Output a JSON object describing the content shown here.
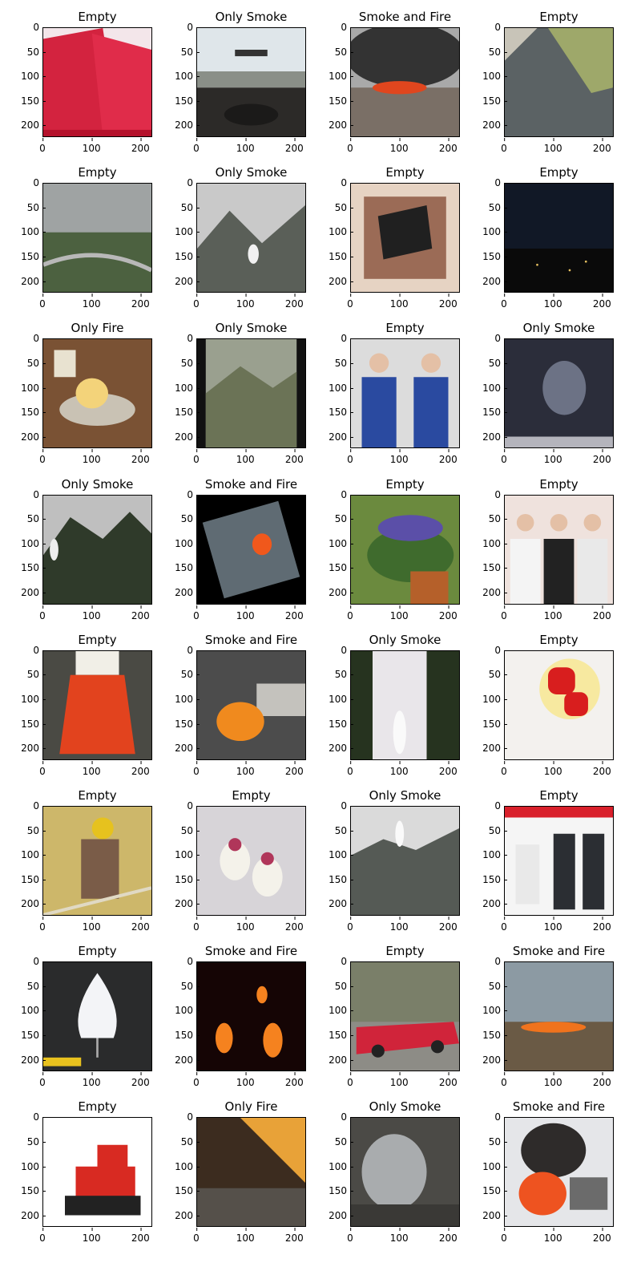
{
  "axis": {
    "y_ticks": [
      "0",
      "50",
      "100",
      "150",
      "200"
    ],
    "x_ticks": [
      "0",
      "100",
      "200"
    ]
  },
  "panels": [
    {
      "title": "Empty",
      "scene": "bags"
    },
    {
      "title": "Only Smoke",
      "scene": "car_interior"
    },
    {
      "title": "Smoke and Fire",
      "scene": "rooftop_smoke"
    },
    {
      "title": "Empty",
      "scene": "road"
    },
    {
      "title": "Empty",
      "scene": "cloudy_valley"
    },
    {
      "title": "Only Smoke",
      "scene": "mountain_smoke"
    },
    {
      "title": "Empty",
      "scene": "charcoal"
    },
    {
      "title": "Empty",
      "scene": "night"
    },
    {
      "title": "Only Fire",
      "scene": "kitchen"
    },
    {
      "title": "Only Smoke",
      "scene": "blurry_mountains"
    },
    {
      "title": "Empty",
      "scene": "two_men"
    },
    {
      "title": "Only Smoke",
      "scene": "dark_smoke"
    },
    {
      "title": "Only Smoke",
      "scene": "mountain_smoke2"
    },
    {
      "title": "Smoke and Fire",
      "scene": "rotated_fire"
    },
    {
      "title": "Empty",
      "scene": "flowers"
    },
    {
      "title": "Empty",
      "scene": "three_people"
    },
    {
      "title": "Empty",
      "scene": "red_pants"
    },
    {
      "title": "Smoke and Fire",
      "scene": "car_fire"
    },
    {
      "title": "Only Smoke",
      "scene": "forest_smoke"
    },
    {
      "title": "Empty",
      "scene": "lanterns"
    },
    {
      "title": "Empty",
      "scene": "worker"
    },
    {
      "title": "Empty",
      "scene": "glasses"
    },
    {
      "title": "Only Smoke",
      "scene": "mountain_smoke3"
    },
    {
      "title": "Empty",
      "scene": "product_ad"
    },
    {
      "title": "Empty",
      "scene": "lamp"
    },
    {
      "title": "Smoke and Fire",
      "scene": "dark_flames"
    },
    {
      "title": "Empty",
      "scene": "red_car"
    },
    {
      "title": "Smoke and Fire",
      "scene": "grass_fire"
    },
    {
      "title": "Empty",
      "scene": "bulldozer"
    },
    {
      "title": "Only Fire",
      "scene": "building_fire"
    },
    {
      "title": "Only Smoke",
      "scene": "indoor_smoke"
    },
    {
      "title": "Smoke and Fire",
      "scene": "truck_fire"
    }
  ]
}
